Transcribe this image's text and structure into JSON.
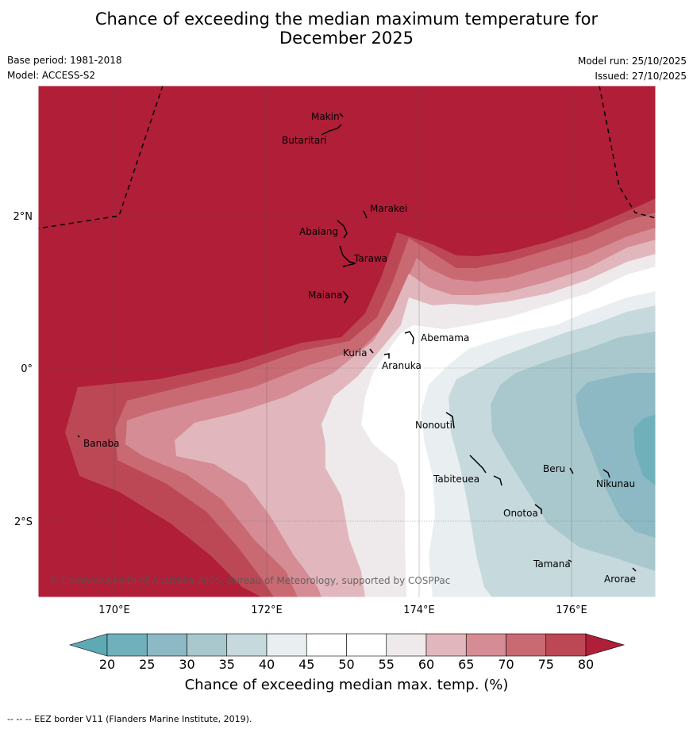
{
  "title": {
    "line1": "Chance of exceeding the median maximum temperature for",
    "line2": "December 2025"
  },
  "meta": {
    "base_period": "Base period: 1981-2018",
    "model": "Model: ACCESS-S2",
    "model_run": "Model run: 25/10/2025",
    "issued": "Issued: 27/10/2025"
  },
  "axes": {
    "lat_labels": [
      "2°N",
      "0°",
      "2°S"
    ],
    "lon_labels": [
      "170°E",
      "172°E",
      "174°E",
      "176°E"
    ]
  },
  "places": [
    "Makin",
    "Butaritari",
    "Marakei",
    "Abaiang",
    "Tarawa",
    "Maiana",
    "Abemama",
    "Kuria",
    "Aranuka",
    "Banaba",
    "Nonouti",
    "Tabiteuea",
    "Beru",
    "Nikunau",
    "Onotoa",
    "Tamana",
    "Arorae"
  ],
  "copyright": "© Commonwealth of Australia 2025, Bureau of Meteorology, supported by COSPPac",
  "colorbar": {
    "ticks": [
      "20",
      "25",
      "30",
      "35",
      "40",
      "45",
      "50",
      "55",
      "60",
      "65",
      "70",
      "75",
      "80"
    ],
    "label": "Chance of exceeding median max. temp. (%)",
    "colors": [
      "#5eaab4",
      "#6fb0bb",
      "#8cb9c3",
      "#a9c8cd",
      "#c6d9dd",
      "#e9eff1",
      "#ffffff",
      "#ffffff",
      "#eeeaeb",
      "#e1b7bd",
      "#d58c95",
      "#c96a72",
      "#bd4855",
      "#b01e38"
    ]
  },
  "footer": "--  --  -- EEZ border V11 (Flanders Marine Institute, 2019)."
}
